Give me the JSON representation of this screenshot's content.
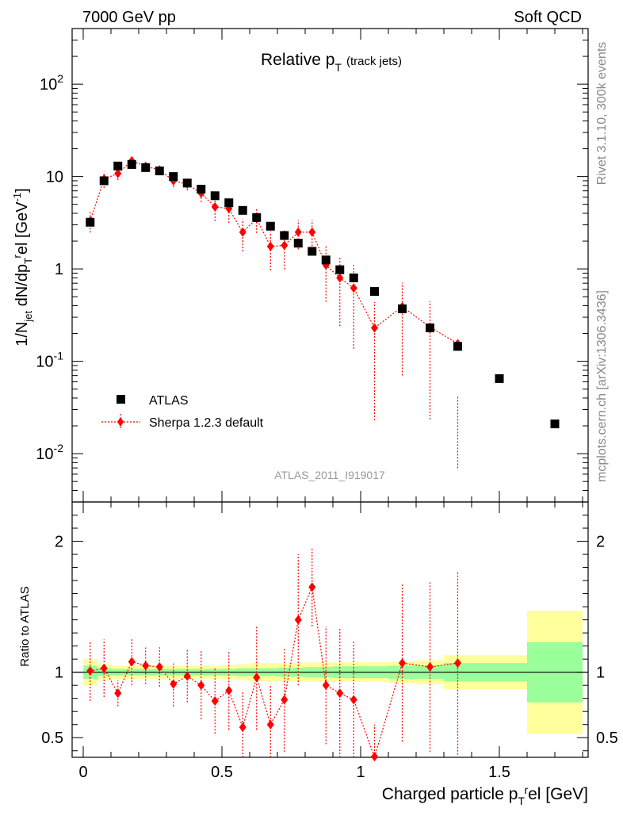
{
  "header": {
    "left": "7000 GeV pp",
    "right": "Soft QCD"
  },
  "side": {
    "rivet": "Rivet 3.1.10,  300k events",
    "mcplots": "mcplots.cern.ch [arXiv:1306.3436]"
  },
  "plot_title": {
    "main": "Relative p",
    "sub": "T",
    "suffix": "(track jets)"
  },
  "watermark": "ATLAS_2011_I919017",
  "legend": {
    "atlas": "ATLAS",
    "sherpa": "Sherpa 1.2.3 default"
  },
  "colors": {
    "atlas": "#000000",
    "mc": "#ff0000",
    "band_inner": "#9bff9b",
    "band_outer": "#ffff9b"
  },
  "chart_data": [
    {
      "type": "scatter",
      "panel": "main",
      "ylabel": "1/N_jet dN/dp_T^rel [GeV^-1]",
      "yscale": "log",
      "ylim": [
        0.003,
        400
      ],
      "xlim": [
        -0.04,
        1.82
      ],
      "ytick_labels": [
        "10^-2",
        "10^-1",
        "1",
        "10",
        "10^2"
      ],
      "series": [
        {
          "name": "ATLAS",
          "x": [
            0.025,
            0.075,
            0.125,
            0.175,
            0.225,
            0.275,
            0.325,
            0.375,
            0.425,
            0.475,
            0.525,
            0.575,
            0.625,
            0.675,
            0.725,
            0.775,
            0.825,
            0.875,
            0.925,
            0.975,
            1.05,
            1.15,
            1.25,
            1.35,
            1.5,
            1.7
          ],
          "values": [
            3.2,
            9.0,
            13.0,
            13.5,
            12.5,
            11.5,
            10.0,
            8.5,
            7.3,
            6.2,
            5.2,
            4.3,
            3.6,
            2.9,
            2.3,
            1.9,
            1.55,
            1.25,
            0.98,
            0.8,
            0.57,
            0.37,
            0.23,
            0.145,
            0.065,
            0.021
          ]
        },
        {
          "name": "Sherpa 1.2.3 default",
          "x": [
            0.025,
            0.075,
            0.125,
            0.175,
            0.225,
            0.275,
            0.325,
            0.375,
            0.425,
            0.475,
            0.525,
            0.575,
            0.625,
            0.675,
            0.725,
            0.775,
            0.825,
            0.875,
            0.925,
            0.975,
            1.05,
            1.15,
            1.25,
            1.35
          ],
          "values": [
            3.3,
            9.4,
            10.8,
            14.8,
            12.9,
            11.8,
            9.0,
            8.3,
            6.6,
            4.7,
            4.5,
            2.5,
            3.5,
            1.75,
            1.8,
            2.5,
            2.5,
            1.1,
            0.8,
            0.62,
            0.23,
            0.39,
            0.235,
            0.155
          ],
          "err_low": [
            0.75,
            0.8,
            0.85,
            0.95,
            0.9,
            0.92,
            0.85,
            0.85,
            0.8,
            0.7,
            0.7,
            0.62,
            0.7,
            0.55,
            0.55,
            0.65,
            0.65,
            0.4,
            0.3,
            0.22,
            0.1,
            0.18,
            0.1,
            0.045
          ],
          "err_high": [
            1.3,
            1.2,
            1.15,
            1.05,
            1.1,
            1.08,
            1.15,
            1.15,
            1.2,
            1.3,
            1.3,
            1.38,
            1.3,
            1.45,
            1.45,
            1.35,
            1.35,
            1.6,
            1.7,
            1.78,
            1.9,
            1.82,
            1.9,
            0.27
          ]
        }
      ]
    },
    {
      "type": "scatter",
      "panel": "ratio",
      "ylabel": "Ratio to ATLAS",
      "xlabel": "Charged particle p_T^rel [GeV]",
      "ylim": [
        0.35,
        2.3
      ],
      "xlim": [
        -0.04,
        1.82
      ],
      "xtick_labels": [
        "0",
        "0.5",
        "1",
        "1.5"
      ],
      "ytick_labels": [
        "0.5",
        "1",
        "2"
      ],
      "bands": {
        "edges": [
          0.0,
          0.05,
          0.1,
          0.15,
          0.2,
          0.25,
          0.3,
          0.35,
          0.4,
          0.45,
          0.5,
          0.55,
          0.6,
          0.65,
          0.7,
          0.75,
          0.8,
          0.85,
          0.9,
          0.95,
          1.0,
          1.1,
          1.2,
          1.3,
          1.4,
          1.6,
          1.8
        ],
        "inner": [
          0.05,
          0.03,
          0.025,
          0.025,
          0.025,
          0.025,
          0.025,
          0.025,
          0.025,
          0.025,
          0.025,
          0.03,
          0.03,
          0.03,
          0.035,
          0.035,
          0.04,
          0.04,
          0.045,
          0.045,
          0.045,
          0.05,
          0.05,
          0.07,
          0.07,
          0.23
        ],
        "outer": [
          0.1,
          0.06,
          0.05,
          0.05,
          0.05,
          0.05,
          0.05,
          0.05,
          0.05,
          0.05,
          0.055,
          0.06,
          0.07,
          0.07,
          0.07,
          0.07,
          0.075,
          0.075,
          0.075,
          0.075,
          0.075,
          0.08,
          0.09,
          0.13,
          0.13,
          0.47
        ]
      },
      "series": [
        {
          "name": "Sherpa 1.2.3 default",
          "x": [
            0.025,
            0.075,
            0.125,
            0.175,
            0.225,
            0.275,
            0.325,
            0.375,
            0.425,
            0.475,
            0.525,
            0.575,
            0.625,
            0.675,
            0.725,
            0.775,
            0.825,
            0.875,
            0.925,
            0.975,
            1.05,
            1.15,
            1.25,
            1.35
          ],
          "values": [
            1.01,
            1.03,
            0.84,
            1.08,
            1.05,
            1.04,
            0.91,
            0.97,
            0.9,
            0.78,
            0.86,
            0.58,
            0.96,
            0.6,
            0.79,
            1.4,
            1.65,
            0.9,
            0.84,
            0.79,
            0.35,
            1.07,
            1.04,
            1.07
          ],
          "err_low": [
            0.23,
            0.22,
            0.1,
            0.18,
            0.14,
            0.15,
            0.17,
            0.2,
            0.26,
            0.25,
            0.3,
            0.28,
            0.4,
            0.3,
            0.4,
            0.5,
            0.3,
            0.45,
            0.5,
            0.45,
            0.25,
            0.6,
            0.65,
            0.7
          ],
          "err_high": [
            0.23,
            0.22,
            0.1,
            0.18,
            0.14,
            0.15,
            0.17,
            0.2,
            0.26,
            0.25,
            0.3,
            0.28,
            0.4,
            0.3,
            0.4,
            0.5,
            0.3,
            0.45,
            0.5,
            0.45,
            0.25,
            0.6,
            0.65,
            0.7
          ]
        }
      ]
    }
  ]
}
